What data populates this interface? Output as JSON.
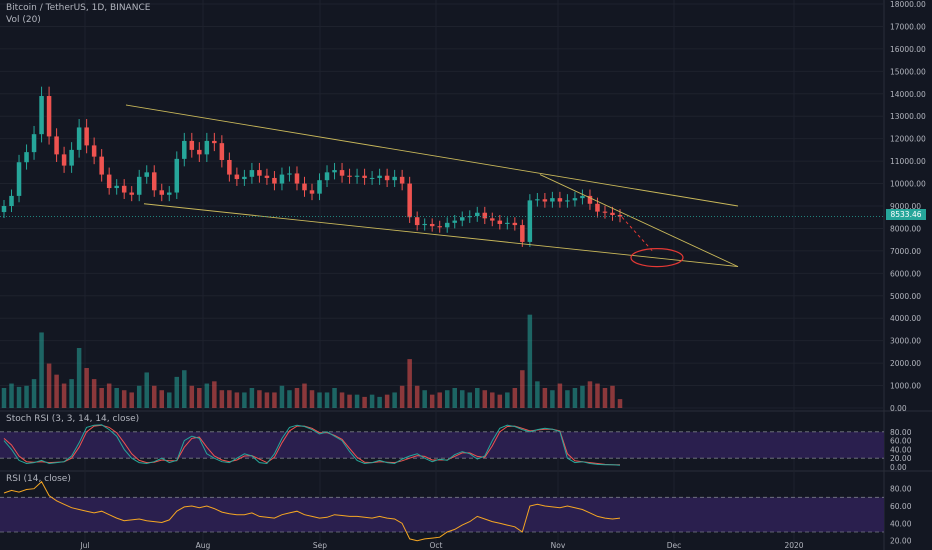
{
  "header": {
    "symbol": "Bitcoin / TetherUS, 1D, BINANCE",
    "volume_label": "Vol (20)",
    "stoch_label": "Stoch RSI (3, 3, 14, 14, close)",
    "rsi_label": "RSI (14, close)"
  },
  "last_price": "8533.46",
  "colors": {
    "background": "#131722",
    "up": "#26a69a",
    "down": "#ef5350",
    "trendline": "#c9b85a",
    "ellipse": "#e53935",
    "stoch_k": "#26a69a",
    "stoch_d": "#ef5350",
    "rsi_line": "#f5a623",
    "band_fill": "#2a1f4e"
  },
  "chart_data": [
    {
      "type": "candlestick",
      "title": "Bitcoin / TetherUS, 1D, BINANCE",
      "x_ticks": [
        "Jul",
        "Aug",
        "Sep",
        "Oct",
        "Nov",
        "Dec",
        "2020"
      ],
      "y_ticks": [
        "0.00",
        "1000.00",
        "2000.00",
        "3000.00",
        "4000.00",
        "5000.00",
        "6000.00",
        "7000.00",
        "8000.00",
        "9000.00",
        "10000.00",
        "11000.00",
        "12000.00",
        "13000.00",
        "14000.00",
        "15000.00",
        "16000.00",
        "17000.00",
        "18000.00"
      ],
      "ylim": [
        0,
        18000
      ],
      "series": [
        {
          "name": "price",
          "close": [
            9000,
            9450,
            10950,
            11400,
            12200,
            13900,
            12100,
            11300,
            10800,
            11500,
            12500,
            11700,
            11200,
            10400,
            9800,
            9900,
            9600,
            9500,
            10300,
            10500,
            9700,
            9500,
            9600,
            11100,
            11900,
            11500,
            11300,
            11900,
            11800,
            11050,
            10400,
            10200,
            10300,
            10600,
            10350,
            10250,
            10000,
            10400,
            10450,
            10000,
            9700,
            9550,
            10150,
            10500,
            10600,
            10350,
            10300,
            10350,
            10250,
            10250,
            10350,
            10150,
            10300,
            10000,
            8500,
            8150,
            8200,
            8100,
            8050,
            8250,
            8350,
            8500,
            8550,
            8700,
            8450,
            8350,
            8200,
            8250,
            8150,
            7400,
            9250,
            9300,
            9200,
            9350,
            9200,
            9250,
            9350,
            9450,
            9100,
            8750,
            8700,
            8600,
            8533.46
          ]
        },
        {
          "name": "Vol (20)",
          "values": [
            900,
            1100,
            950,
            1000,
            1300,
            3400,
            2000,
            1500,
            1100,
            1300,
            2700,
            1800,
            1300,
            900,
            1100,
            900,
            800,
            700,
            1000,
            1600,
            1000,
            800,
            700,
            1400,
            1700,
            1000,
            900,
            1100,
            1200,
            800,
            800,
            700,
            700,
            900,
            800,
            700,
            700,
            1000,
            800,
            900,
            1100,
            800,
            700,
            700,
            900,
            700,
            600,
            600,
            500,
            600,
            500,
            600,
            700,
            1000,
            2200,
            1000,
            800,
            600,
            700,
            800,
            900,
            800,
            700,
            900,
            800,
            700,
            600,
            700,
            900,
            1700,
            4200,
            1200,
            900,
            800,
            1100,
            800,
            900,
            1000,
            1200,
            1100,
            900,
            1000,
            400
          ]
        }
      ],
      "annotations": {
        "upper_trendline": [
          [
            0.14,
            13500
          ],
          [
            0.82,
            9000
          ]
        ],
        "lower_trendline": [
          [
            0.16,
            9100
          ],
          [
            0.82,
            6300
          ]
        ],
        "wedge_line": [
          [
            0.6,
            10400
          ],
          [
            0.82,
            6300
          ]
        ],
        "target_ellipse_center": [
          0.73,
          6700
        ],
        "last_price_line": 8533.46
      }
    },
    {
      "type": "line",
      "title": "Stoch RSI (3, 3, 14, 14, close)",
      "y_ticks": [
        "0.00",
        "20.00",
        "40.00",
        "60.00",
        "80.00"
      ],
      "ylim": [
        0,
        100
      ],
      "bands": [
        20,
        80
      ],
      "series": [
        {
          "name": "K",
          "values": [
            60,
            40,
            15,
            8,
            10,
            15,
            8,
            10,
            12,
            25,
            55,
            90,
            95,
            96,
            85,
            70,
            40,
            20,
            10,
            8,
            12,
            20,
            10,
            15,
            60,
            70,
            65,
            30,
            20,
            12,
            10,
            20,
            30,
            25,
            10,
            8,
            30,
            65,
            90,
            95,
            92,
            85,
            75,
            80,
            70,
            60,
            35,
            15,
            8,
            10,
            15,
            10,
            8,
            18,
            25,
            30,
            20,
            12,
            18,
            15,
            28,
            35,
            30,
            18,
            25,
            60,
            88,
            95,
            92,
            85,
            80,
            85,
            88,
            86,
            80,
            20,
            10,
            12,
            8,
            6,
            5,
            5,
            4
          ]
        },
        {
          "name": "D",
          "values": [
            65,
            50,
            25,
            12,
            11,
            12,
            10,
            11,
            12,
            20,
            45,
            80,
            93,
            95,
            90,
            78,
            55,
            30,
            15,
            10,
            11,
            16,
            14,
            14,
            45,
            65,
            68,
            45,
            25,
            16,
            12,
            16,
            25,
            26,
            18,
            10,
            22,
            55,
            82,
            93,
            93,
            88,
            78,
            78,
            72,
            63,
            42,
            22,
            11,
            10,
            12,
            11,
            10,
            14,
            20,
            26,
            24,
            16,
            16,
            16,
            24,
            32,
            32,
            24,
            22,
            48,
            80,
            92,
            93,
            88,
            82,
            84,
            86,
            86,
            82,
            30,
            14,
            12,
            10,
            8,
            6,
            5,
            5
          ]
        }
      ]
    },
    {
      "type": "line",
      "title": "RSI (14, close)",
      "y_ticks": [
        "20.00",
        "40.00",
        "60.00",
        "80.00"
      ],
      "ylim": [
        15,
        90
      ],
      "bands": [
        30,
        70
      ],
      "series": [
        {
          "name": "RSI",
          "values": [
            75,
            78,
            76,
            79,
            80,
            88,
            72,
            66,
            62,
            58,
            56,
            54,
            52,
            54,
            50,
            46,
            43,
            44,
            45,
            43,
            42,
            41,
            44,
            54,
            59,
            60,
            58,
            60,
            57,
            53,
            51,
            50,
            50,
            52,
            48,
            47,
            46,
            50,
            52,
            54,
            50,
            48,
            46,
            47,
            50,
            49,
            48,
            48,
            47,
            46,
            48,
            46,
            45,
            40,
            22,
            20,
            22,
            23,
            24,
            30,
            33,
            38,
            42,
            48,
            45,
            42,
            40,
            38,
            36,
            30,
            60,
            62,
            60,
            59,
            58,
            60,
            58,
            56,
            52,
            48,
            46,
            45,
            46
          ]
        }
      ]
    }
  ]
}
